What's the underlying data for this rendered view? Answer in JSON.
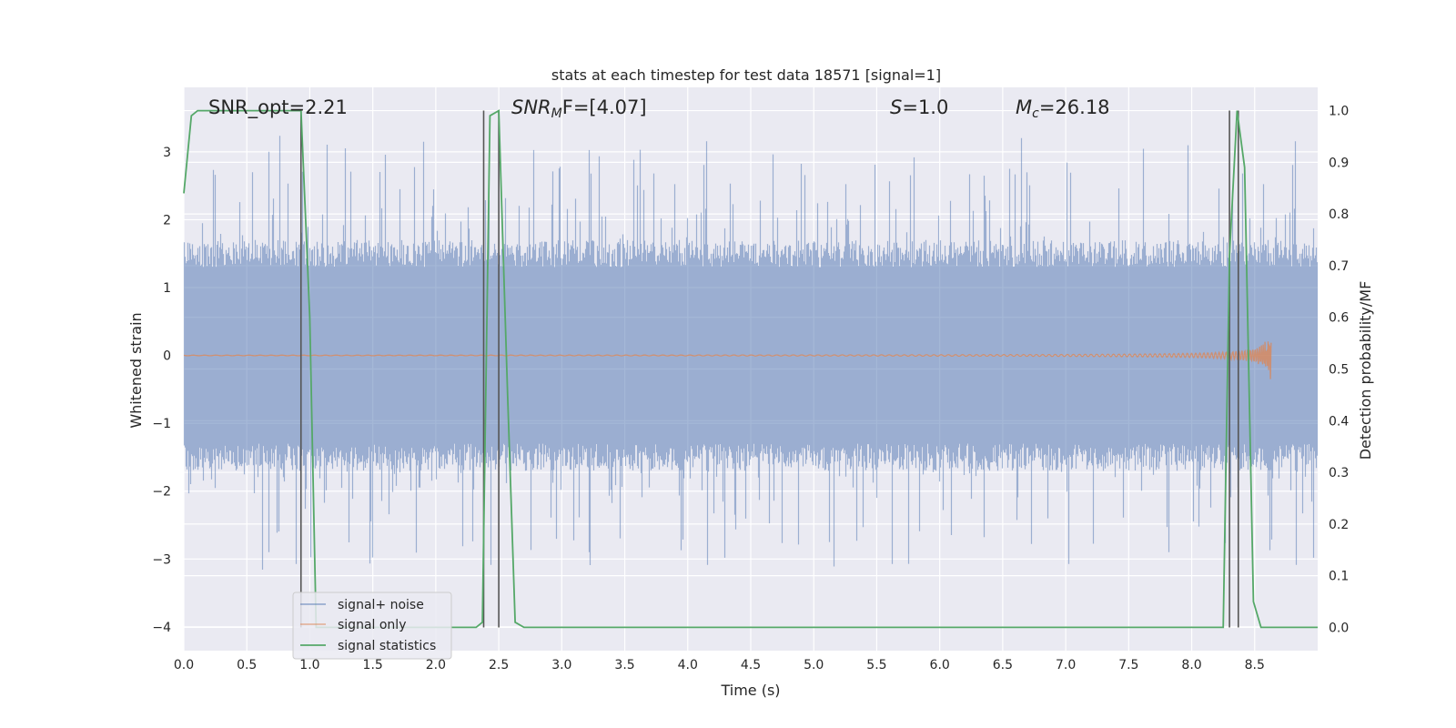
{
  "chart_data": {
    "type": "line",
    "title": "stats at each timestep for test data 18571 [signal=1]",
    "xlabel": "Time (s)",
    "ylabel": "Whitened strain",
    "y2label": "Detection probability/MF",
    "xlim": [
      0,
      9.0
    ],
    "ylim": [
      -4.35,
      3.95
    ],
    "y2lim": [
      -0.045,
      1.045
    ],
    "xticks": [
      0.0,
      0.5,
      1.0,
      1.5,
      2.0,
      2.5,
      3.0,
      3.5,
      4.0,
      4.5,
      5.0,
      5.5,
      6.0,
      6.5,
      7.0,
      7.5,
      8.0,
      8.5
    ],
    "xtick_labels": [
      "0.0",
      "0.5",
      "1.0",
      "1.5",
      "2.0",
      "2.5",
      "3.0",
      "3.5",
      "4.0",
      "4.5",
      "5.0",
      "5.5",
      "6.0",
      "6.5",
      "7.0",
      "7.5",
      "8.0",
      "8.5"
    ],
    "yticks": [
      -4,
      -3,
      -2,
      -1,
      0,
      1,
      2,
      3
    ],
    "ytick_labels": [
      "−4",
      "−3",
      "−2",
      "−1",
      "0",
      "1",
      "2",
      "3"
    ],
    "y2ticks": [
      0.0,
      0.1,
      0.2,
      0.3,
      0.4,
      0.5,
      0.6,
      0.7,
      0.8,
      0.9,
      1.0
    ],
    "y2tick_labels": [
      "0.0",
      "0.1",
      "0.2",
      "0.3",
      "0.4",
      "0.5",
      "0.6",
      "0.7",
      "0.8",
      "0.9",
      "1.0"
    ],
    "grid": true,
    "legend_position": "lower-left",
    "annotations": {
      "snr_opt": "SNR_opt=2.21",
      "snr_mf_main": "SNR",
      "snr_mf_sub": "M",
      "snr_mf_rest": "F=[4.07]",
      "s_main": "S",
      "s_rest": "=1.0",
      "mc_main": "M",
      "mc_sub": "c",
      "mc_rest": "=26.18"
    },
    "series": [
      {
        "name": "signal+ noise",
        "color": "#4c72b0",
        "axis": "left",
        "envelope_std": 0.8,
        "x_range": [
          0.0,
          9.0
        ]
      },
      {
        "name": "signal only",
        "color": "#dd8452",
        "axis": "left",
        "x_range": [
          0.0,
          8.63
        ],
        "peak_amplitude": 0.45
      },
      {
        "name": "signal statistics",
        "color": "#55a868",
        "axis": "right",
        "x": [
          0.0,
          0.06,
          0.11,
          0.2,
          0.5,
          0.8,
          0.93,
          1.0,
          1.05,
          1.1,
          1.2,
          2.2,
          2.32,
          2.37,
          2.43,
          2.5,
          2.57,
          2.63,
          2.7,
          3.0,
          8.0,
          8.25,
          8.3,
          8.36,
          8.42,
          8.49,
          8.55,
          8.6,
          9.0
        ],
        "values": [
          0.84,
          0.99,
          1.0,
          1.0,
          1.0,
          1.0,
          1.0,
          0.6,
          0.0,
          0.0,
          0.0,
          0.0,
          0.0,
          0.01,
          0.99,
          1.0,
          0.45,
          0.01,
          0.0,
          0.0,
          0.0,
          0.0,
          0.72,
          1.0,
          0.89,
          0.05,
          0.0,
          0.0,
          0.0
        ]
      }
    ],
    "markers": {
      "color": "#555555",
      "x": [
        0.93,
        2.38,
        2.5,
        8.3,
        8.37
      ],
      "y2_top": 1.0,
      "y2_bottom": 0.0
    }
  }
}
